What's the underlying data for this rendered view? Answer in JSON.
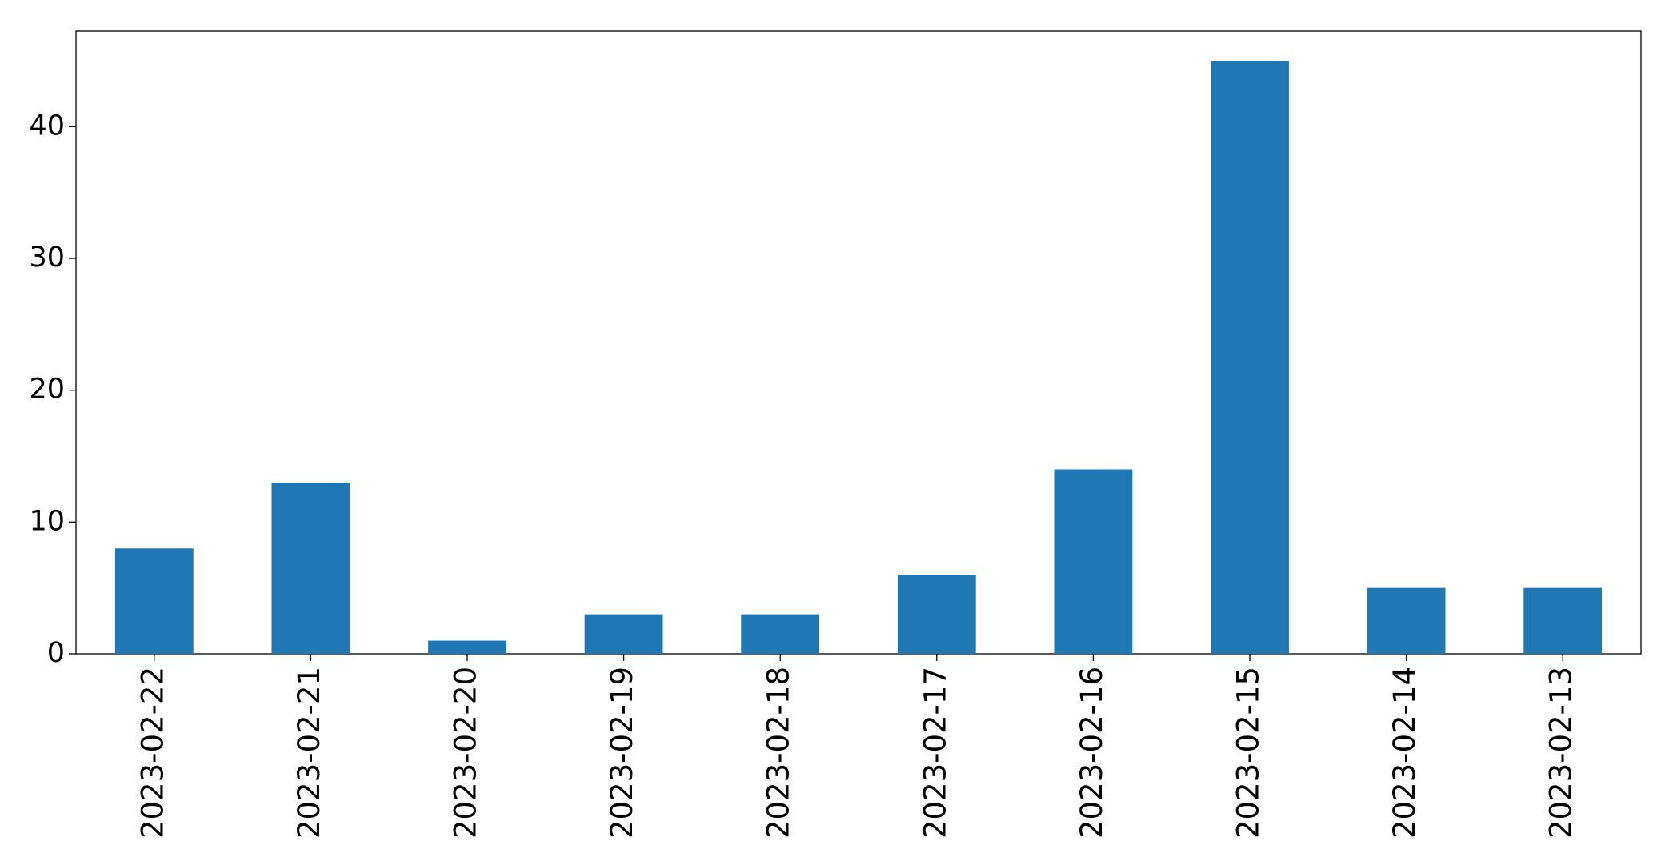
{
  "chart_data": {
    "type": "bar",
    "categories": [
      "2023-02-22",
      "2023-02-21",
      "2023-02-20",
      "2023-02-19",
      "2023-02-18",
      "2023-02-17",
      "2023-02-16",
      "2023-02-15",
      "2023-02-14",
      "2023-02-13"
    ],
    "values": [
      8,
      13,
      1,
      3,
      3,
      6,
      14,
      45,
      5,
      5
    ],
    "color": "#1f77b4",
    "ylim": [
      0,
      47.25
    ],
    "yticks": [
      0,
      10,
      20,
      30,
      40
    ],
    "grid": false
  }
}
